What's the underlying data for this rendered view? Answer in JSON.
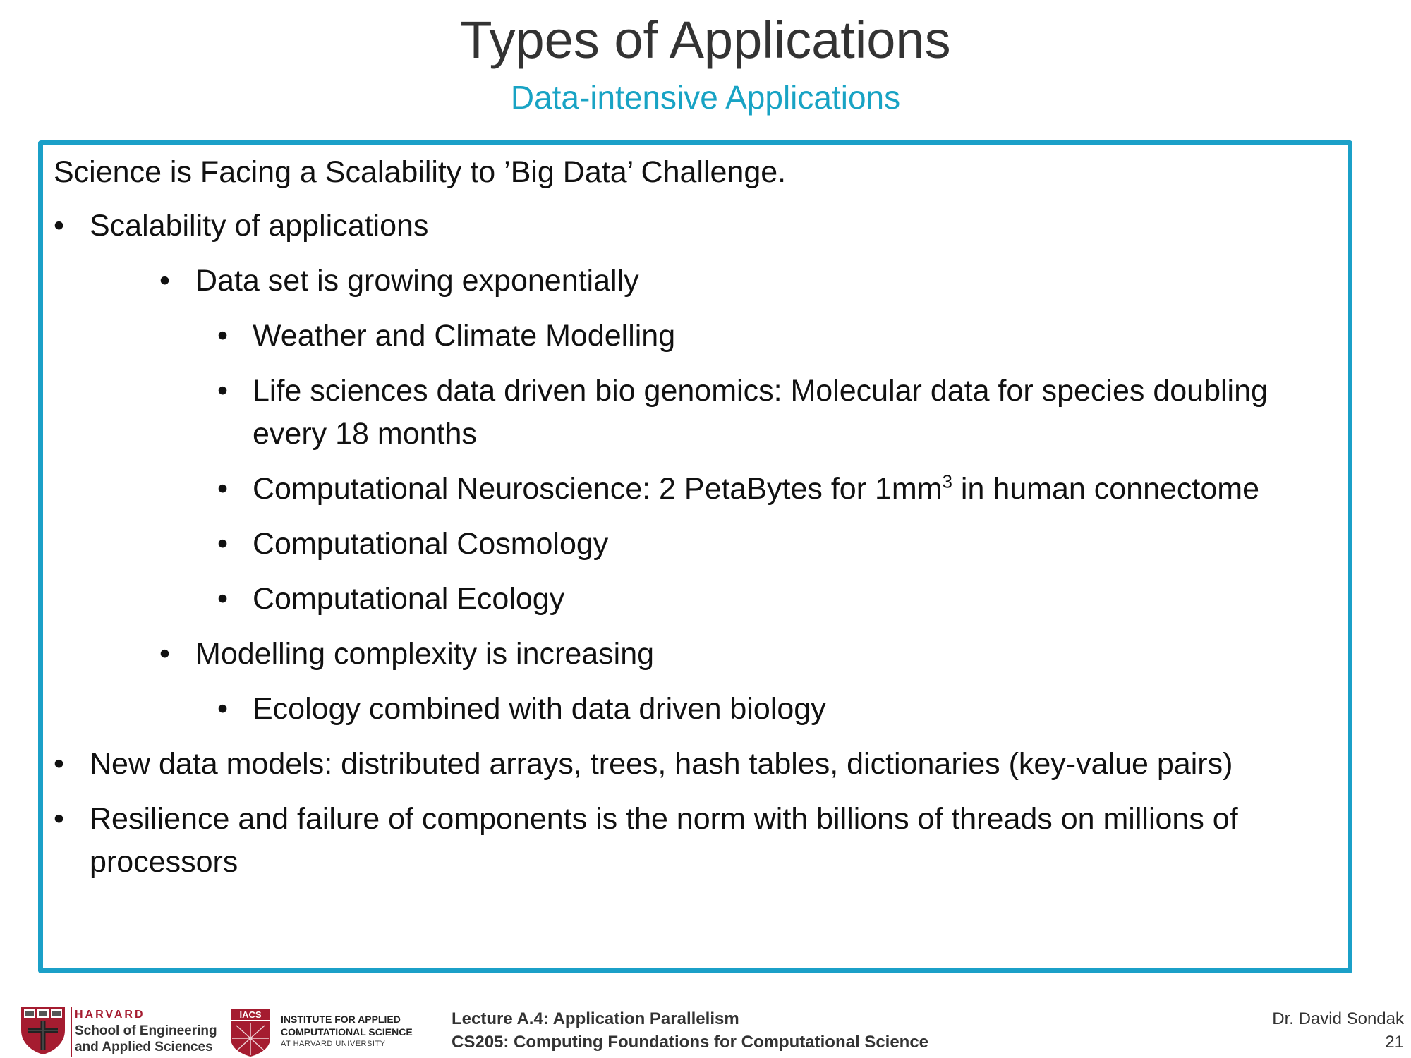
{
  "slide": {
    "title": "Types of Applications",
    "subtitle": "Data-intensive Applications",
    "accent_color": "#1ba0c8"
  },
  "content": {
    "intro": "Science is Facing a Scalability to ’Big Data’ Challenge.",
    "bullet_char": "•",
    "items": [
      "Scalability of applications",
      "Data set is growing exponentially",
      "Weather and Climate Modelling",
      "Life sciences data driven bio genomics: Molecular data for species doubling",
      "every 18 months",
      "Computational Neuroscience: 2 PetaBytes for 1mm",
      "3",
      " in human connectome",
      "Computational Cosmology",
      "Computational Ecology",
      "Modelling complexity is increasing",
      "Ecology combined with data driven biology",
      "New data models: distributed arrays, trees, hash tables, dictionaries (key-value pairs)",
      "Resilience and failure of components is the norm with billions of threads on millions of",
      "processors"
    ]
  },
  "footer": {
    "harvard_word": "HARVARD",
    "school_line1": "School of Engineering",
    "school_line2": "and Applied Sciences",
    "iacs_abbr": "IACS",
    "iacs_line1": "INSTITUTE FOR APPLIED",
    "iacs_line2": "COMPUTATIONAL SCIENCE",
    "iacs_line3": "AT HARVARD UNIVERSITY",
    "lecture": "Lecture A.4: Application Parallelism",
    "course": "CS205: Computing Foundations for Computational Science",
    "author": "Dr. David Sondak",
    "page_number": "21",
    "harvard_color": "#a51c30"
  }
}
